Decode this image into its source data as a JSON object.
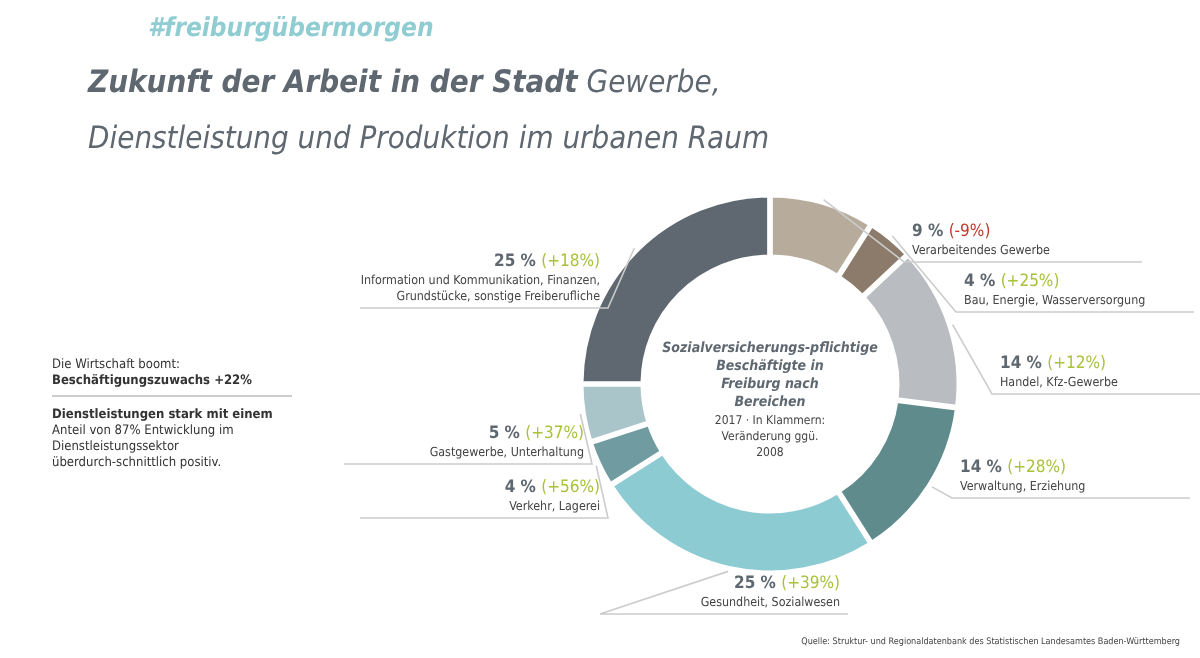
{
  "chart_data": {
    "type": "donut",
    "subtitle": "#freiburgübermorgen",
    "title": "Zukunft der Arbeit in der Stadt",
    "xlabel": "Gewerbe, Dienstleistung und Produktion im urbanen Raum",
    "legend_title": "Sozialversicherungs-pflichtige Beschäftigte in Freiburg nach Bereichen",
    "annotations": [
      "2017 · In Klammern: Veränderung ggü. 2008",
      "Die Wirtschaft boomt:",
      "Beschäftigungszuwachs +22%",
      "Dienstleistungen stark mit einem Anteil von 87% Entwicklung im Dienstleistungssektor überdurch-schnittlich positiv.",
      "Quelle: Struktur- und Regionaldatenbank des Statistischen Landesamtes Baden-Württemberg"
    ],
    "categories": [
      "Verarbeitendes Gewerbe",
      "Bau, Energie, Wasserversorgung",
      "Handel, Kfz-Gewerbe",
      "Verwaltung, Erziehung",
      "Gesundheit, Sozialwesen",
      "Verkehr, Lagerei",
      "Gastgewerbe, Unterhaltung",
      "Information und Kommunikation, Finanzen, Grundstücke, sonstige Freiberufliche"
    ],
    "values": [
      9,
      4,
      14,
      14,
      25,
      4,
      5,
      25
    ],
    "value_labels": [
      "9 % (-9%)",
      "4 % (+25%)",
      "14 % (+12%)",
      "14 % (+28%)",
      "25 % (+39%)",
      "4 % (+56%)",
      "5 % (+37%)",
      "25 % (+18%)"
    ],
    "colors": [
      "#b7ac9c",
      "#8c7b6a",
      "#b9bcc0",
      "#5f8b8d",
      "#8dcbd3",
      "#6f9ba1",
      "#a9c5ca",
      "#5f6870"
    ],
    "legend": false
  }
}
